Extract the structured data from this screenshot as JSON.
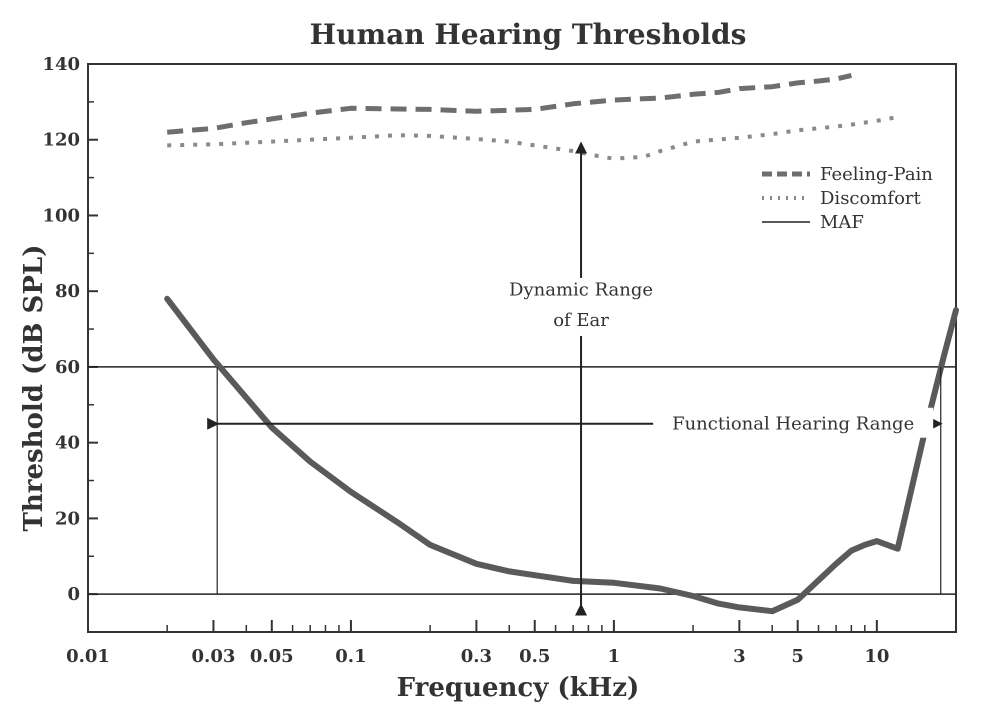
{
  "chart_data": {
    "type": "line",
    "title": "Human Hearing Thresholds",
    "xlabel": "Frequency (kHz)",
    "ylabel": "Threshold (dB SPL)",
    "x_scale": "log",
    "xlim": [
      0.01,
      20
    ],
    "ylim": [
      -10,
      140
    ],
    "x_ticks": [
      0.01,
      0.03,
      0.05,
      0.1,
      0.3,
      0.5,
      1,
      3,
      5,
      10
    ],
    "x_tick_labels": [
      "0.01",
      "0.03",
      "0.05",
      "0.1",
      "0.3",
      "0.5",
      "1",
      "3",
      "5",
      "10"
    ],
    "y_ticks": [
      0,
      20,
      40,
      60,
      80,
      100,
      120,
      140
    ],
    "y_tick_labels": [
      "0",
      "20",
      "40",
      "60",
      "80",
      "100",
      "120",
      "140"
    ],
    "grid": false,
    "legend_position": "top-right",
    "series": [
      {
        "name": "Feeling-Pain",
        "style": "dashed",
        "color": "#6e6e6e",
        "x": [
          0.02,
          0.03,
          0.04,
          0.05,
          0.07,
          0.1,
          0.2,
          0.3,
          0.5,
          0.7,
          1,
          1.5,
          2,
          2.5,
          3,
          4,
          5,
          6,
          7,
          8
        ],
        "y": [
          122,
          123,
          124.5,
          125.5,
          127,
          128.3,
          128,
          127.5,
          128,
          129.5,
          130.5,
          131,
          132,
          132.5,
          133.5,
          134,
          135,
          135.5,
          136,
          137
        ]
      },
      {
        "name": "Discomfort",
        "style": "dotted",
        "color": "#8a8a8a",
        "x": [
          0.02,
          0.03,
          0.05,
          0.07,
          0.1,
          0.15,
          0.2,
          0.3,
          0.4,
          0.5,
          0.7,
          0.9,
          1,
          1.3,
          1.5,
          2,
          3,
          4,
          5,
          7,
          8,
          10,
          12
        ],
        "y": [
          118.5,
          118.8,
          119.5,
          120,
          120.5,
          121.2,
          121,
          120.2,
          119.5,
          118.5,
          117,
          115.5,
          115,
          115.5,
          117,
          119.5,
          120.5,
          121.5,
          122.5,
          123.5,
          124,
          125,
          126
        ]
      },
      {
        "name": "MAF",
        "style": "solid",
        "color": "#5a5a5a",
        "x": [
          0.02,
          0.03,
          0.05,
          0.07,
          0.1,
          0.15,
          0.2,
          0.3,
          0.4,
          0.5,
          0.7,
          1,
          1.5,
          2,
          2.5,
          3,
          4,
          5,
          7,
          8,
          9,
          10,
          12,
          15,
          18,
          20
        ],
        "y": [
          78,
          62,
          44,
          35,
          27,
          19,
          13,
          8,
          6,
          5,
          3.5,
          3,
          1.5,
          -0.5,
          -2.5,
          -3.5,
          -4.5,
          -1.5,
          8,
          11.5,
          13,
          14,
          12,
          41,
          63,
          75
        ]
      }
    ],
    "reference_lines": [
      60,
      0
    ],
    "annotations": {
      "dynamic_range": {
        "label_line1": "Dynamic Range",
        "label_line2": "of Ear",
        "x": 0.75,
        "y_top": 119,
        "y_bottom": -3
      },
      "functional_range": {
        "label": "Functional Hearing Range",
        "y": 45,
        "x_left": 0.031,
        "x_right": 17.5
      }
    }
  }
}
